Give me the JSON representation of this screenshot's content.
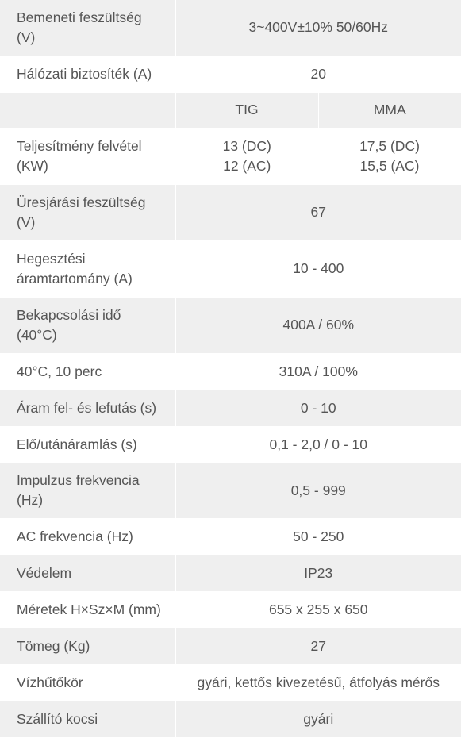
{
  "rows": [
    {
      "label_lines": [
        "Bemeneti feszültség",
        "(V)"
      ],
      "value": "3~400V±10% 50/60Hz"
    },
    {
      "label_lines": [
        "Hálózati biztosíték (A)"
      ],
      "value": "20"
    },
    {
      "subheaders": [
        "TIG",
        "MMA"
      ]
    },
    {
      "label_lines": [
        "Teljesítmény felvétel",
        "(KW)"
      ],
      "tig_lines": [
        "13 (DC)",
        "12 (AC)"
      ],
      "mma_lines": [
        "17,5 (DC)",
        "15,5 (AC)"
      ]
    },
    {
      "label_lines": [
        "Üresjárási feszültség",
        "(V)"
      ],
      "value": "67"
    },
    {
      "label_lines": [
        "Hegesztési",
        "áramtartomány (A)"
      ],
      "value": "10 - 400"
    },
    {
      "label_lines": [
        "Bekapcsolási idő",
        "(40°C)"
      ],
      "value": "400A / 60%"
    },
    {
      "label_lines": [
        "40°C, 10 perc"
      ],
      "value": "310A / 100%"
    },
    {
      "label_lines": [
        "Áram fel- és lefutás (s)"
      ],
      "value": "0 - 10"
    },
    {
      "label_lines": [
        "Elő/utánáramlás (s)"
      ],
      "value": "0,1 - 2,0 / 0 - 10"
    },
    {
      "label_lines": [
        "Impulzus frekvencia",
        "(Hz)"
      ],
      "value": "0,5 - 999"
    },
    {
      "label_lines": [
        "AC frekvencia (Hz)"
      ],
      "value": "50 - 250"
    },
    {
      "label_lines": [
        "Védelem"
      ],
      "value": "IP23"
    },
    {
      "label_lines": [
        "Méretek H×Sz×M (mm)"
      ],
      "value": "655 x 255 x 650"
    },
    {
      "label_lines": [
        "Tömeg (Kg)"
      ],
      "value": "27"
    },
    {
      "label_lines": [
        "Vízhűtőkör"
      ],
      "value": "gyári, kettős kivezetésű, átfolyás mérős"
    },
    {
      "label_lines": [
        "Szállító kocsi"
      ],
      "value": "gyári"
    }
  ]
}
